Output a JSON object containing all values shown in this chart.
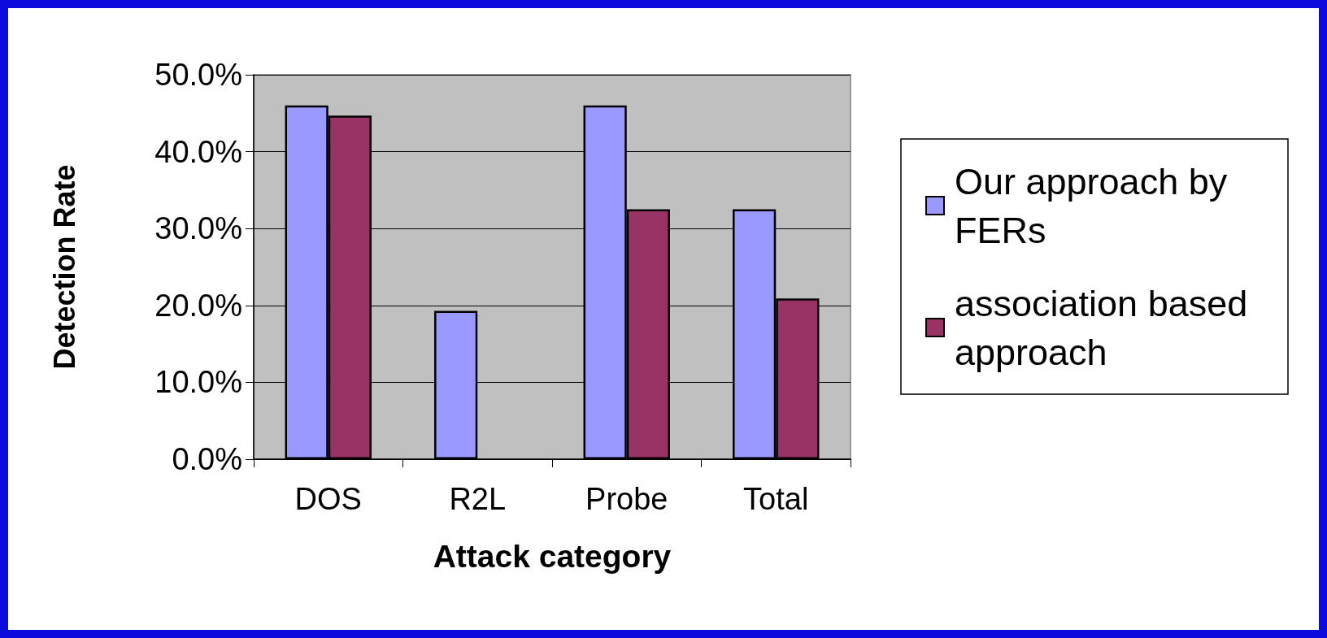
{
  "chart_data": {
    "type": "bar",
    "xlabel": "Attack category",
    "ylabel": "Detection Rate",
    "categories": [
      "DOS",
      "R2L",
      "Probe",
      "Total"
    ],
    "series": [
      {
        "name": "Our approach by FERs",
        "color": "#9999ff",
        "values": [
          46.0,
          19.3,
          46.0,
          32.5
        ]
      },
      {
        "name": "association based approach",
        "color": "#993366",
        "values": [
          44.7,
          null,
          32.5,
          20.9
        ]
      }
    ],
    "ylim": [
      0,
      50
    ],
    "yticks": [
      {
        "value": 0,
        "label": "0.0%"
      },
      {
        "value": 10,
        "label": "10.0%"
      },
      {
        "value": 20,
        "label": "20.0%"
      },
      {
        "value": 30,
        "label": "30.0%"
      },
      {
        "value": 40,
        "label": "40.0%"
      },
      {
        "value": 50,
        "label": "50.0%"
      }
    ],
    "grid": "y",
    "legend": "right"
  }
}
